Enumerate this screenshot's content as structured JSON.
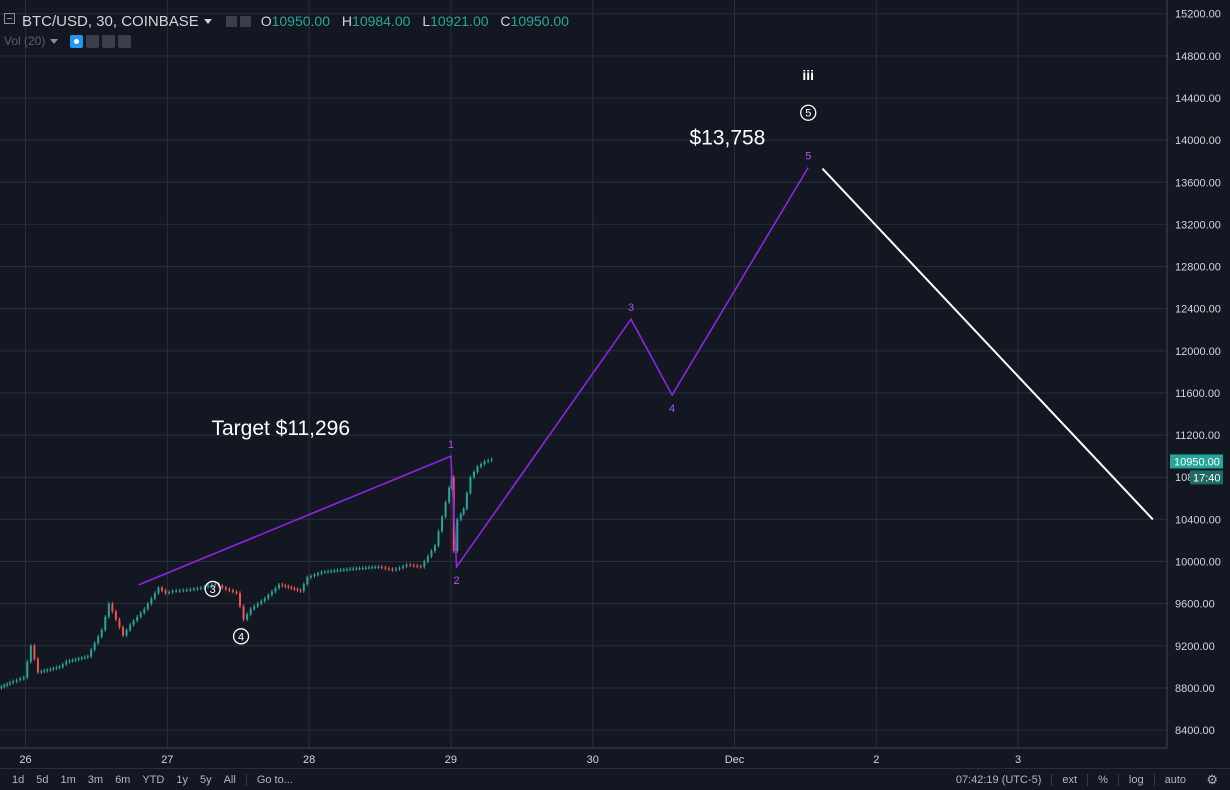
{
  "header": {
    "symbol": "BTC/USD, 30, COINBASE",
    "o_label": "O",
    "o_value": "10950.00",
    "h_label": "H",
    "h_value": "10984.00",
    "l_label": "L",
    "l_value": "10921.00",
    "c_label": "C",
    "c_value": "10950.00"
  },
  "volume_indicator": {
    "label": "Vol (20)"
  },
  "bottom_bar": {
    "ranges": [
      "1d",
      "5d",
      "1m",
      "3m",
      "6m",
      "YTD",
      "1y",
      "5y",
      "All"
    ],
    "goto": "Go to...",
    "time": "07:42:19 (UTC-5)",
    "ext": "ext",
    "percent": "%",
    "log": "log",
    "auto": "auto"
  },
  "colors": {
    "up": "#26a69a",
    "down": "#ef5350",
    "wave": "#8e24e8",
    "projection": "#ffffff",
    "price_badge": "#26a69a"
  },
  "chart_data": {
    "type": "line",
    "symbol": "BTC/USD",
    "interval": "30",
    "y_axis": {
      "ticks": [
        8400,
        8800,
        9200,
        9600,
        10000,
        10400,
        10800,
        11200,
        11600,
        12000,
        12400,
        12800,
        13200,
        13600,
        14000,
        14400,
        14800,
        15200
      ],
      "tick_labels": [
        "8400.00",
        "8800.00",
        "9200.00",
        "9600.00",
        "10000.00",
        "10400.00",
        "10800.00",
        "11200.00",
        "11600.00",
        "12000.00",
        "12400.00",
        "12800.00",
        "13200.00",
        "13600.00",
        "14000.00",
        "14400.00",
        "14800.00",
        "15200.00"
      ],
      "range": [
        8230,
        15330
      ]
    },
    "x_axis": {
      "ticks": [
        0,
        1,
        2,
        3,
        4,
        5,
        6,
        7
      ],
      "tick_labels": [
        "26",
        "27",
        "28",
        "29",
        "30",
        "Dec",
        "2",
        "3"
      ],
      "range": [
        -0.18,
        8.05
      ]
    },
    "grid": true,
    "current_price": {
      "label": "10950.00",
      "value": 10950,
      "countdown": "17:40"
    },
    "price_path": {
      "x": [
        -0.18,
        -0.1,
        0,
        0.05,
        0.1,
        0.25,
        0.3,
        0.45,
        0.55,
        0.6,
        0.7,
        0.75,
        0.85,
        0.95,
        1.0,
        1.05,
        1.15,
        1.25,
        1.35,
        1.4,
        1.5,
        1.55,
        1.6,
        1.7,
        1.8,
        1.95,
        2.0,
        2.1,
        2.3,
        2.5,
        2.6,
        2.65,
        2.7,
        2.8,
        2.9,
        3.0,
        3.01,
        3.03,
        3.06,
        3.1,
        3.15,
        3.2,
        3.25,
        3.3
      ],
      "y": [
        8800,
        8850,
        8900,
        9200,
        8950,
        9000,
        9050,
        9100,
        9350,
        9600,
        9300,
        9400,
        9550,
        9750,
        9700,
        9720,
        9730,
        9750,
        9790,
        9750,
        9700,
        9450,
        9550,
        9650,
        9780,
        9720,
        9850,
        9900,
        9930,
        9950,
        9920,
        9940,
        9970,
        9950,
        10150,
        10700,
        10800,
        10100,
        10400,
        10500,
        10800,
        10900,
        10950,
        10970
      ]
    },
    "wave_count": {
      "x": [
        0.8,
        3.0,
        3.04,
        4.27,
        4.56,
        5.52
      ],
      "y": [
        9780,
        11000,
        9950,
        12300,
        11580,
        13740
      ],
      "labels": [
        "",
        "1",
        "2",
        "3",
        "4",
        "5"
      ]
    },
    "projection": {
      "x": [
        5.62,
        7.95
      ],
      "y": [
        13730,
        10400
      ]
    },
    "annotations": [
      {
        "text": "Target $11,296",
        "x": 1.8,
        "y": 11200
      },
      {
        "text": "$13,758",
        "x": 4.95,
        "y": 13960
      },
      {
        "text": "iii",
        "x": 5.52,
        "y": 14570
      },
      {
        "text": "5",
        "x": 5.52,
        "y": 14260,
        "circled": true
      },
      {
        "text": "3",
        "x": 1.32,
        "y": 9740,
        "circled": true
      },
      {
        "text": "4",
        "x": 1.52,
        "y": 9290,
        "circled": true
      }
    ]
  }
}
